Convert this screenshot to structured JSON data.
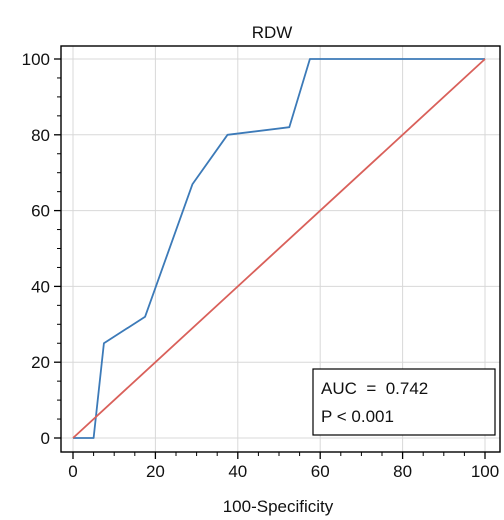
{
  "chart_data": {
    "type": "line",
    "title": "RDW",
    "xlabel": "100-Specificity",
    "ylabel": "",
    "xlim": [
      0,
      100
    ],
    "ylim": [
      0,
      100
    ],
    "x_ticks": [
      "0",
      "20",
      "40",
      "60",
      "80",
      "100"
    ],
    "y_ticks": [
      "0",
      "20",
      "40",
      "60",
      "80",
      "100"
    ],
    "grid": true,
    "series": [
      {
        "color": "#3c7ab8",
        "points": [
          {
            "x": 0,
            "y": 0
          },
          {
            "x": 5,
            "y": 0
          },
          {
            "x": 7.5,
            "y": 25
          },
          {
            "x": 17.5,
            "y": 32
          },
          {
            "x": 29,
            "y": 67
          },
          {
            "x": 37.5,
            "y": 80
          },
          {
            "x": 52.5,
            "y": 82
          },
          {
            "x": 57.5,
            "y": 100
          },
          {
            "x": 100,
            "y": 100
          }
        ]
      },
      {
        "color": "#d9605a",
        "points": [
          {
            "x": 0,
            "y": 0
          },
          {
            "x": 100,
            "y": 100
          }
        ]
      }
    ],
    "annotation": {
      "lines": [
        "AUC  =  0.742",
        "P < 0.001"
      ],
      "placement": "bottom-right"
    }
  }
}
